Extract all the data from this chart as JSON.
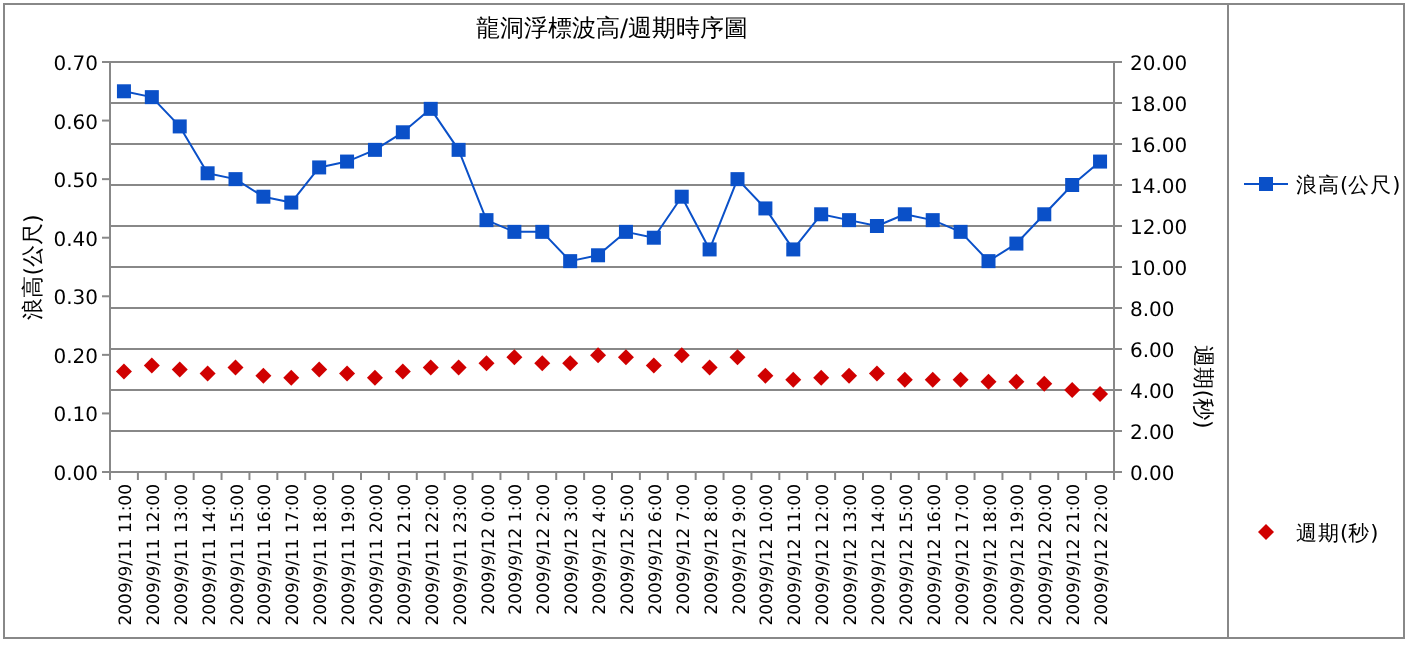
{
  "chart_data": {
    "type": "line",
    "title": "龍洞浮標波高/週期時序圖",
    "ylabel": "浪高(公尺)",
    "y2label": "週期(秒)",
    "categories": [
      "2009/9/11 11:00",
      "2009/9/11 12:00",
      "2009/9/11 13:00",
      "2009/9/11 14:00",
      "2009/9/11 15:00",
      "2009/9/11 16:00",
      "2009/9/11 17:00",
      "2009/9/11 18:00",
      "2009/9/11 19:00",
      "2009/9/11 20:00",
      "2009/9/11 21:00",
      "2009/9/11 22:00",
      "2009/9/11 23:00",
      "2009/9/12 0:00",
      "2009/9/12 1:00",
      "2009/9/12 2:00",
      "2009/9/12 3:00",
      "2009/9/12 4:00",
      "2009/9/12 5:00",
      "2009/9/12 6:00",
      "2009/9/12 7:00",
      "2009/9/12 8:00",
      "2009/9/12 9:00",
      "2009/9/12 10:00",
      "2009/9/12 11:00",
      "2009/9/12 12:00",
      "2009/9/12 13:00",
      "2009/9/12 14:00",
      "2009/9/12 15:00",
      "2009/9/12 16:00",
      "2009/9/12 17:00",
      "2009/9/12 18:00",
      "2009/9/12 19:00",
      "2009/9/12 20:00",
      "2009/9/12 21:00",
      "2009/9/12 22:00"
    ],
    "series": [
      {
        "name": "浪高(公尺)",
        "marker": "square",
        "color": "#0a50c8",
        "values": [
          0.65,
          0.64,
          0.59,
          0.51,
          0.5,
          0.47,
          0.46,
          0.52,
          0.53,
          0.55,
          0.58,
          0.62,
          0.55,
          0.43,
          0.41,
          0.41,
          0.36,
          0.37,
          0.41,
          0.4,
          0.47,
          0.38,
          0.5,
          0.45,
          0.38,
          0.44,
          0.43,
          0.42,
          0.44,
          0.43,
          0.41,
          0.36,
          0.39,
          0.44,
          0.49,
          0.53
        ]
      },
      {
        "name": "週期(秒)",
        "type": "scatter",
        "marker": "diamond",
        "axis": "y2",
        "color": "#d00000",
        "values": [
          4.9,
          5.2,
          5.0,
          4.8,
          5.1,
          4.7,
          4.6,
          5.0,
          4.8,
          4.6,
          4.9,
          5.1,
          5.1,
          5.3,
          5.6,
          5.3,
          5.3,
          5.7,
          5.6,
          5.2,
          5.7,
          5.1,
          5.6,
          4.7,
          4.5,
          4.6,
          4.7,
          4.8,
          4.5,
          4.5,
          4.5,
          4.4,
          4.4,
          4.3,
          4.0,
          3.8
        ]
      }
    ],
    "ylim": [
      0,
      0.7
    ],
    "yticks": [
      {
        "value": 0,
        "label": "0.00"
      },
      {
        "value": 0.1,
        "label": "0.10"
      },
      {
        "value": 0.2,
        "label": "0.20"
      },
      {
        "value": 0.3,
        "label": "0.30"
      },
      {
        "value": 0.4,
        "label": "0.40"
      },
      {
        "value": 0.5,
        "label": "0.50"
      },
      {
        "value": 0.6,
        "label": "0.60"
      },
      {
        "value": 0.7,
        "label": "0.70"
      }
    ],
    "y2lim": [
      0,
      20
    ],
    "y2ticks": [
      {
        "value": 0,
        "label": "0.00"
      },
      {
        "value": 2,
        "label": "2.00"
      },
      {
        "value": 4,
        "label": "4.00"
      },
      {
        "value": 6,
        "label": "6.00"
      },
      {
        "value": 8,
        "label": "8.00"
      },
      {
        "value": 10,
        "label": "10.00"
      },
      {
        "value": 12,
        "label": "12.00"
      },
      {
        "value": 14,
        "label": "14.00"
      },
      {
        "value": 16,
        "label": "16.00"
      },
      {
        "value": 18,
        "label": "18.00"
      },
      {
        "value": 20,
        "label": "20.00"
      }
    ],
    "grid": "y2",
    "legend": "right"
  }
}
